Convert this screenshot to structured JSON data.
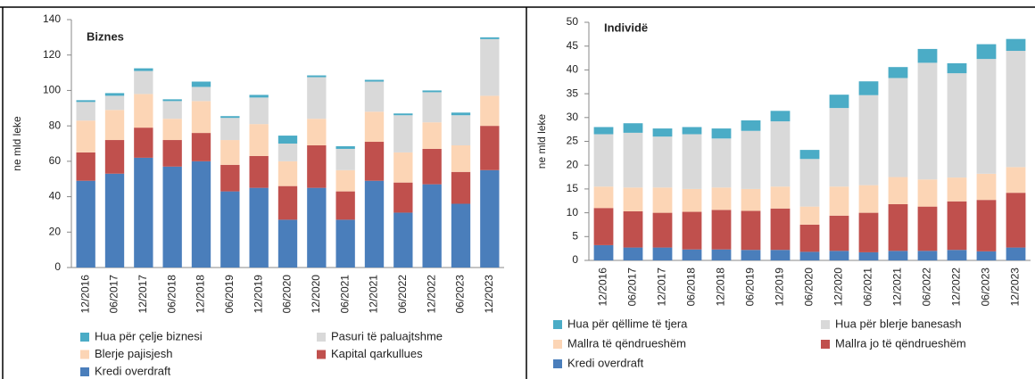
{
  "chart_data": [
    {
      "type": "bar",
      "stacked": true,
      "title": "Biznes",
      "y_label": "ne mld leke",
      "categories": [
        "12/2016",
        "06/2017",
        "12/2017",
        "06/2018",
        "12/2018",
        "06/2019",
        "12/2019",
        "06/2020",
        "12/2020",
        "06/2021",
        "12/2021",
        "06/2022",
        "12/2022",
        "06/2023",
        "12/2023"
      ],
      "ylim": [
        0,
        140
      ],
      "yticks": [
        0,
        20,
        40,
        60,
        80,
        100,
        120,
        140
      ],
      "series": [
        {
          "name": "Hua për çelje biznesi",
          "color": "#4bacc6",
          "values": [
            1,
            1.5,
            1.5,
            1,
            3,
            1,
            1.5,
            4.5,
            1,
            1.5,
            1,
            1,
            1,
            1.5,
            1
          ]
        },
        {
          "name": "Pasuri të paluajtshme",
          "color": "#d9d9d9",
          "values": [
            10.5,
            8,
            13,
            10,
            8,
            12.5,
            15,
            10,
            23.5,
            12,
            17,
            21,
            17,
            17,
            32
          ]
        },
        {
          "name": "Blerje pajisjesh",
          "color": "#fcd5b5",
          "values": [
            18,
            17,
            19,
            12,
            18,
            14,
            18,
            14,
            15,
            12,
            17,
            17,
            15,
            15,
            17
          ]
        },
        {
          "name": "Kapital qarkullues",
          "color": "#c0504d",
          "values": [
            16,
            19,
            17,
            15,
            16,
            15,
            18,
            19,
            24,
            16,
            22,
            17,
            20,
            18,
            25
          ]
        },
        {
          "name": "Kredi overdraft",
          "color": "#4a7ebb",
          "values": [
            49,
            53,
            62,
            57,
            60,
            43,
            45,
            27,
            45,
            27,
            49,
            31,
            47,
            36,
            55
          ]
        }
      ]
    },
    {
      "type": "bar",
      "stacked": true,
      "title": "Individë",
      "y_label": "ne mld leke",
      "categories": [
        "12/2016",
        "06/2017",
        "12/2017",
        "06/2018",
        "12/2018",
        "06/2019",
        "12/2019",
        "06/2020",
        "12/2020",
        "06/2021",
        "12/2021",
        "06/2022",
        "12/2022",
        "06/2023",
        "12/2023"
      ],
      "ylim": [
        0,
        50
      ],
      "yticks": [
        0,
        5,
        10,
        15,
        20,
        25,
        30,
        35,
        40,
        45,
        50
      ],
      "series": [
        {
          "name": "Hua për qëllime të tjera",
          "color": "#4bacc6",
          "values": [
            1.5,
            2,
            1.7,
            1.5,
            2.1,
            2.2,
            2.2,
            1.9,
            2.8,
            2.9,
            2.3,
            2.9,
            2.1,
            3.1,
            2.5
          ]
        },
        {
          "name": "Hua për blerje banesash",
          "color": "#d9d9d9",
          "values": [
            11,
            11.5,
            10.7,
            11.5,
            10.3,
            12.2,
            13.7,
            10,
            16.5,
            18.9,
            20.8,
            24.5,
            21.9,
            24.1,
            24.4
          ]
        },
        {
          "name": "Mallra të qëndrueshëm",
          "color": "#fcd5b5",
          "values": [
            4.5,
            5,
            5.3,
            4.8,
            4.7,
            4.6,
            4.6,
            3.8,
            6.1,
            5.8,
            5.7,
            5.7,
            5,
            5.5,
            5.4
          ]
        },
        {
          "name": "Mallra jo të qëndrueshëm",
          "color": "#c0504d",
          "values": [
            7.8,
            7.6,
            7.3,
            7.9,
            8.3,
            8.2,
            8.7,
            5.7,
            7.4,
            8.3,
            9.8,
            9.3,
            10.2,
            10.8,
            11.5
          ]
        },
        {
          "name": "Kredi overdraft",
          "color": "#4a7ebb",
          "values": [
            3.2,
            2.7,
            2.7,
            2.3,
            2.3,
            2.2,
            2.2,
            1.8,
            2,
            1.7,
            2,
            2,
            2.2,
            1.9,
            2.7
          ]
        }
      ]
    }
  ]
}
